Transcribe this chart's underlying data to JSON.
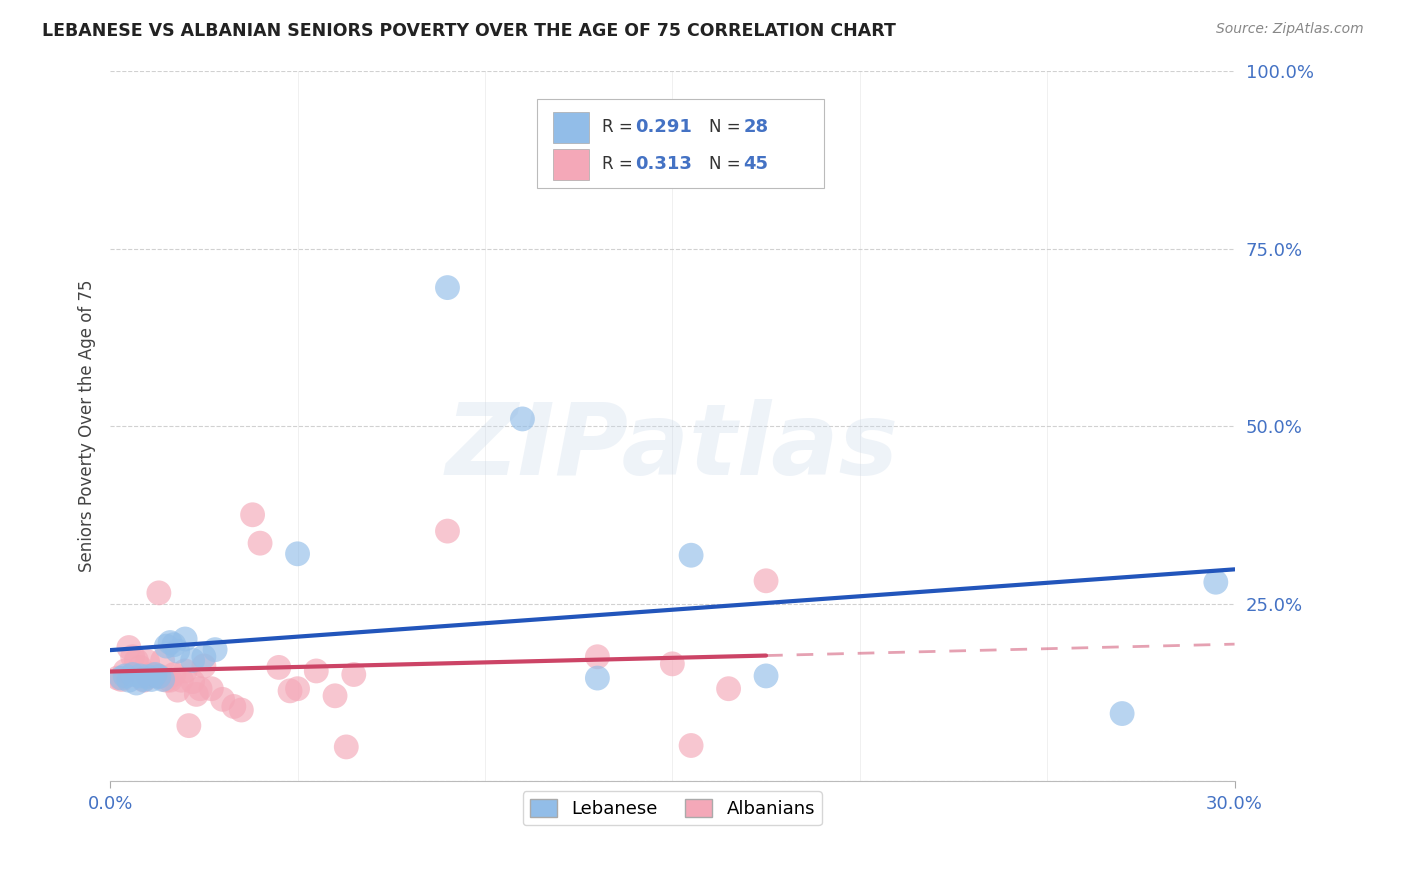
{
  "title": "LEBANESE VS ALBANIAN SENIORS POVERTY OVER THE AGE OF 75 CORRELATION CHART",
  "source": "Source: ZipAtlas.com",
  "ylabel": "Seniors Poverty Over the Age of 75",
  "xmin": 0.0,
  "xmax": 0.3,
  "ymin": 0.0,
  "ymax": 1.0,
  "yticks": [
    0.0,
    0.25,
    0.5,
    0.75,
    1.0
  ],
  "ytick_labels": [
    "",
    "25.0%",
    "50.0%",
    "75.0%",
    "100.0%"
  ],
  "legend_r_leb": "0.291",
  "legend_n_leb": "28",
  "legend_r_alb": "0.313",
  "legend_n_alb": "45",
  "lebanese_color": "#92bde8",
  "albanian_color": "#f4a8b8",
  "lebanese_line_color": "#2255bb",
  "albanian_line_color": "#cc4466",
  "right_axis_color": "#4472c4",
  "watermark_text": "ZIPatlas",
  "leb_x": [
    0.003,
    0.004,
    0.005,
    0.006,
    0.007,
    0.008,
    0.009,
    0.01,
    0.011,
    0.012,
    0.013,
    0.014,
    0.015,
    0.016,
    0.017,
    0.018,
    0.02,
    0.022,
    0.025,
    0.028,
    0.05,
    0.09,
    0.11,
    0.13,
    0.155,
    0.175,
    0.27,
    0.295
  ],
  "leb_y": [
    0.145,
    0.148,
    0.142,
    0.15,
    0.138,
    0.148,
    0.143,
    0.147,
    0.143,
    0.15,
    0.147,
    0.143,
    0.19,
    0.195,
    0.192,
    0.183,
    0.2,
    0.17,
    0.175,
    0.185,
    0.32,
    0.695,
    0.51,
    0.145,
    0.318,
    0.148,
    0.095,
    0.28
  ],
  "alb_x": [
    0.002,
    0.003,
    0.004,
    0.005,
    0.006,
    0.007,
    0.008,
    0.009,
    0.01,
    0.01,
    0.011,
    0.012,
    0.013,
    0.013,
    0.014,
    0.015,
    0.016,
    0.017,
    0.018,
    0.019,
    0.02,
    0.021,
    0.022,
    0.023,
    0.024,
    0.025,
    0.027,
    0.03,
    0.033,
    0.035,
    0.038,
    0.04,
    0.045,
    0.048,
    0.05,
    0.055,
    0.06,
    0.063,
    0.065,
    0.09,
    0.13,
    0.15,
    0.155,
    0.165,
    0.175
  ],
  "alb_y": [
    0.145,
    0.143,
    0.155,
    0.188,
    0.175,
    0.17,
    0.16,
    0.142,
    0.148,
    0.168,
    0.15,
    0.148,
    0.148,
    0.265,
    0.17,
    0.142,
    0.142,
    0.15,
    0.128,
    0.142,
    0.155,
    0.078,
    0.14,
    0.122,
    0.13,
    0.162,
    0.13,
    0.115,
    0.105,
    0.1,
    0.375,
    0.335,
    0.16,
    0.127,
    0.13,
    0.155,
    0.12,
    0.048,
    0.15,
    0.352,
    0.175,
    0.165,
    0.05,
    0.13,
    0.282
  ]
}
